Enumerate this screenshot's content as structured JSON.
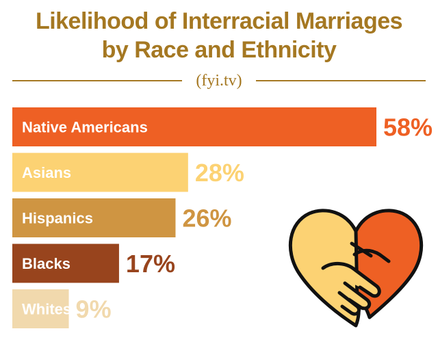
{
  "header": {
    "title_line1": "Likelihood of Interracial Marriages",
    "title_line2": "by Race and Ethnicity",
    "source": "(fyi.tv)"
  },
  "colors": {
    "title": "#a57822",
    "native_americans": "#ee6024",
    "asians": "#fcd273",
    "hispanics": "#cf9542",
    "blacks": "#98441d",
    "whites": "#f1d9ad",
    "heart_orange": "#ee6024",
    "heart_yellow": "#fcd273"
  },
  "icon": "handshake-heart-icon",
  "chart_data": {
    "type": "bar",
    "orientation": "horizontal",
    "title": "Likelihood of Interracial Marriages by Race and Ethnicity",
    "categories": [
      "Native Americans",
      "Asians",
      "Hispanics",
      "Blacks",
      "Whites"
    ],
    "values": [
      58,
      28,
      26,
      17,
      9
    ],
    "value_labels": [
      "58%",
      "28%",
      "26%",
      "17%",
      "9%"
    ],
    "unit": "%",
    "bar_colors": [
      "#ee6024",
      "#fcd273",
      "#cf9542",
      "#98441d",
      "#f1d9ad"
    ],
    "xlim": [
      0,
      58
    ],
    "grid": false,
    "legend": "none"
  }
}
